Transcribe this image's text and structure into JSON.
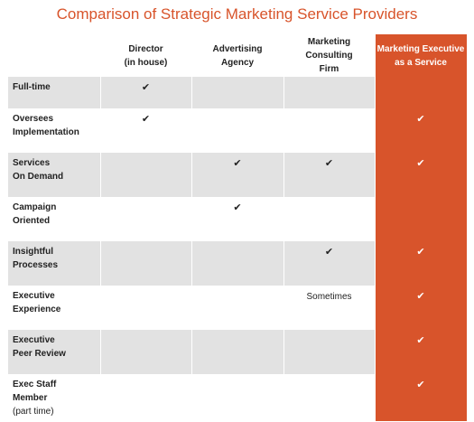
{
  "title": "Comparison of Strategic Marketing Service Providers",
  "accent_color": "#d8542b",
  "columns": [
    {
      "line1": "Director",
      "line2": "(in house)"
    },
    {
      "line1": "Advertising",
      "line2": "Agency"
    },
    {
      "line1": "Marketing Consulting",
      "line2": "Firm"
    },
    {
      "line1": "Marketing Executive",
      "line2": "as a Service"
    }
  ],
  "check_glyph": "✔",
  "rows": [
    {
      "label1": "Full-time",
      "label2": "",
      "label3": "",
      "cells": [
        "✔",
        "",
        "",
        ""
      ]
    },
    {
      "label1": "Oversees",
      "label2": "Implementation",
      "label3": "",
      "cells": [
        "✔",
        "",
        "",
        "✔"
      ]
    },
    {
      "label1": "Services",
      "label2": "On Demand",
      "label3": "",
      "cells": [
        "",
        "✔",
        "✔",
        "✔"
      ]
    },
    {
      "label1": "Campaign",
      "label2": "Oriented",
      "label3": "",
      "cells": [
        "",
        "✔",
        "",
        ""
      ]
    },
    {
      "label1": "Insightful",
      "label2": "Processes",
      "label3": "",
      "cells": [
        "",
        "",
        "✔",
        "✔"
      ]
    },
    {
      "label1": "Executive",
      "label2": "Experience",
      "label3": "",
      "cells": [
        "",
        "",
        "Sometimes",
        "✔"
      ]
    },
    {
      "label1": "Executive",
      "label2": "Peer Review",
      "label3": "",
      "cells": [
        "",
        "",
        "",
        "✔"
      ]
    },
    {
      "label1": "Exec Staff",
      "label2": "Member",
      "label3": "(part time)",
      "cells": [
        "",
        "",
        "",
        "✔"
      ]
    }
  ]
}
